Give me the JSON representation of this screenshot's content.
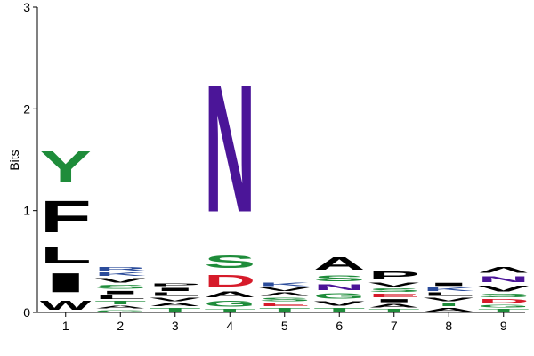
{
  "chart_data": {
    "type": "sequence_logo",
    "ylabel": "Bits",
    "ylim": [
      0,
      3
    ],
    "yticks": [
      0,
      1,
      2,
      3
    ],
    "positions": [
      {
        "label": "1",
        "letters": [
          {
            "char": "W",
            "bits": 0.14,
            "color": "#000000"
          },
          {
            "char": "I",
            "bits": 0.3,
            "color": "#000000"
          },
          {
            "char": "L",
            "bits": 0.25,
            "color": "#000000"
          },
          {
            "char": "F",
            "bits": 0.5,
            "color": "#000000"
          },
          {
            "char": "Y",
            "bits": 0.48,
            "color": "#1e8c3a"
          }
        ]
      },
      {
        "label": "2",
        "letters": [
          {
            "char": "G",
            "bits": 0.03,
            "color": "#1e8c3a"
          },
          {
            "char": "A",
            "bits": 0.04,
            "color": "#000000"
          },
          {
            "char": "T",
            "bits": 0.05,
            "color": "#1e8c3a"
          },
          {
            "char": "L",
            "bits": 0.05,
            "color": "#000000"
          },
          {
            "char": "I",
            "bits": 0.05,
            "color": "#000000"
          },
          {
            "char": "S",
            "bits": 0.06,
            "color": "#1e8c3a"
          },
          {
            "char": "V",
            "bits": 0.07,
            "color": "#000000"
          },
          {
            "char": "K",
            "bits": 0.05,
            "color": "#2b4c9b"
          },
          {
            "char": "R",
            "bits": 0.05,
            "color": "#2b4c9b"
          }
        ]
      },
      {
        "label": "3",
        "letters": [
          {
            "char": "T",
            "bits": 0.05,
            "color": "#1e8c3a"
          },
          {
            "char": "A",
            "bits": 0.05,
            "color": "#000000"
          },
          {
            "char": "V",
            "bits": 0.05,
            "color": "#000000"
          },
          {
            "char": "L",
            "bits": 0.05,
            "color": "#000000"
          },
          {
            "char": "I",
            "bits": 0.05,
            "color": "#000000"
          },
          {
            "char": "P",
            "bits": 0.04,
            "color": "#000000"
          }
        ]
      },
      {
        "label": "4",
        "letters": [
          {
            "char": "T",
            "bits": 0.04,
            "color": "#1e8c3a"
          },
          {
            "char": "G",
            "bits": 0.09,
            "color": "#1e8c3a"
          },
          {
            "char": "A",
            "bits": 0.09,
            "color": "#000000"
          },
          {
            "char": "D",
            "bits": 0.18,
            "color": "#d61b2a"
          },
          {
            "char": "S",
            "bits": 0.2,
            "color": "#1e8c3a"
          },
          {
            "char": "N",
            "bits": 2.0,
            "color": "#4b1598"
          }
        ]
      },
      {
        "label": "5",
        "letters": [
          {
            "char": "T",
            "bits": 0.05,
            "color": "#1e8c3a"
          },
          {
            "char": "E",
            "bits": 0.05,
            "color": "#d61b2a"
          },
          {
            "char": "S",
            "bits": 0.05,
            "color": "#1e8c3a"
          },
          {
            "char": "A",
            "bits": 0.05,
            "color": "#000000"
          },
          {
            "char": "V",
            "bits": 0.05,
            "color": "#000000"
          },
          {
            "char": "K",
            "bits": 0.05,
            "color": "#2b4c9b"
          }
        ]
      },
      {
        "label": "6",
        "letters": [
          {
            "char": "T",
            "bits": 0.05,
            "color": "#1e8c3a"
          },
          {
            "char": "V",
            "bits": 0.07,
            "color": "#000000"
          },
          {
            "char": "G",
            "bits": 0.08,
            "color": "#1e8c3a"
          },
          {
            "char": "N",
            "bits": 0.09,
            "color": "#4b1598"
          },
          {
            "char": "S",
            "bits": 0.09,
            "color": "#1e8c3a"
          },
          {
            "char": "A",
            "bits": 0.2,
            "color": "#000000"
          }
        ]
      },
      {
        "label": "7",
        "letters": [
          {
            "char": "T",
            "bits": 0.04,
            "color": "#1e8c3a"
          },
          {
            "char": "A",
            "bits": 0.05,
            "color": "#000000"
          },
          {
            "char": "I",
            "bits": 0.05,
            "color": "#000000"
          },
          {
            "char": "E",
            "bits": 0.05,
            "color": "#d61b2a"
          },
          {
            "char": "S",
            "bits": 0.05,
            "color": "#1e8c3a"
          },
          {
            "char": "V",
            "bits": 0.06,
            "color": "#000000"
          },
          {
            "char": "P",
            "bits": 0.13,
            "color": "#000000"
          }
        ]
      },
      {
        "label": "8",
        "letters": [
          {
            "char": "A",
            "bits": 0.05,
            "color": "#000000"
          },
          {
            "char": "T",
            "bits": 0.05,
            "color": "#1e8c3a"
          },
          {
            "char": "V",
            "bits": 0.05,
            "color": "#000000"
          },
          {
            "char": "L",
            "bits": 0.05,
            "color": "#000000"
          },
          {
            "char": "K",
            "bits": 0.05,
            "color": "#2b4c9b"
          },
          {
            "char": "I",
            "bits": 0.05,
            "color": "#000000"
          }
        ]
      },
      {
        "label": "9",
        "letters": [
          {
            "char": "T",
            "bits": 0.04,
            "color": "#1e8c3a"
          },
          {
            "char": "G",
            "bits": 0.04,
            "color": "#1e8c3a"
          },
          {
            "char": "D",
            "bits": 0.06,
            "color": "#d61b2a"
          },
          {
            "char": "S",
            "bits": 0.05,
            "color": "#1e8c3a"
          },
          {
            "char": "V",
            "bits": 0.09,
            "color": "#000000"
          },
          {
            "char": "N",
            "bits": 0.09,
            "color": "#4b1598"
          },
          {
            "char": "A",
            "bits": 0.09,
            "color": "#000000"
          }
        ]
      }
    ]
  }
}
